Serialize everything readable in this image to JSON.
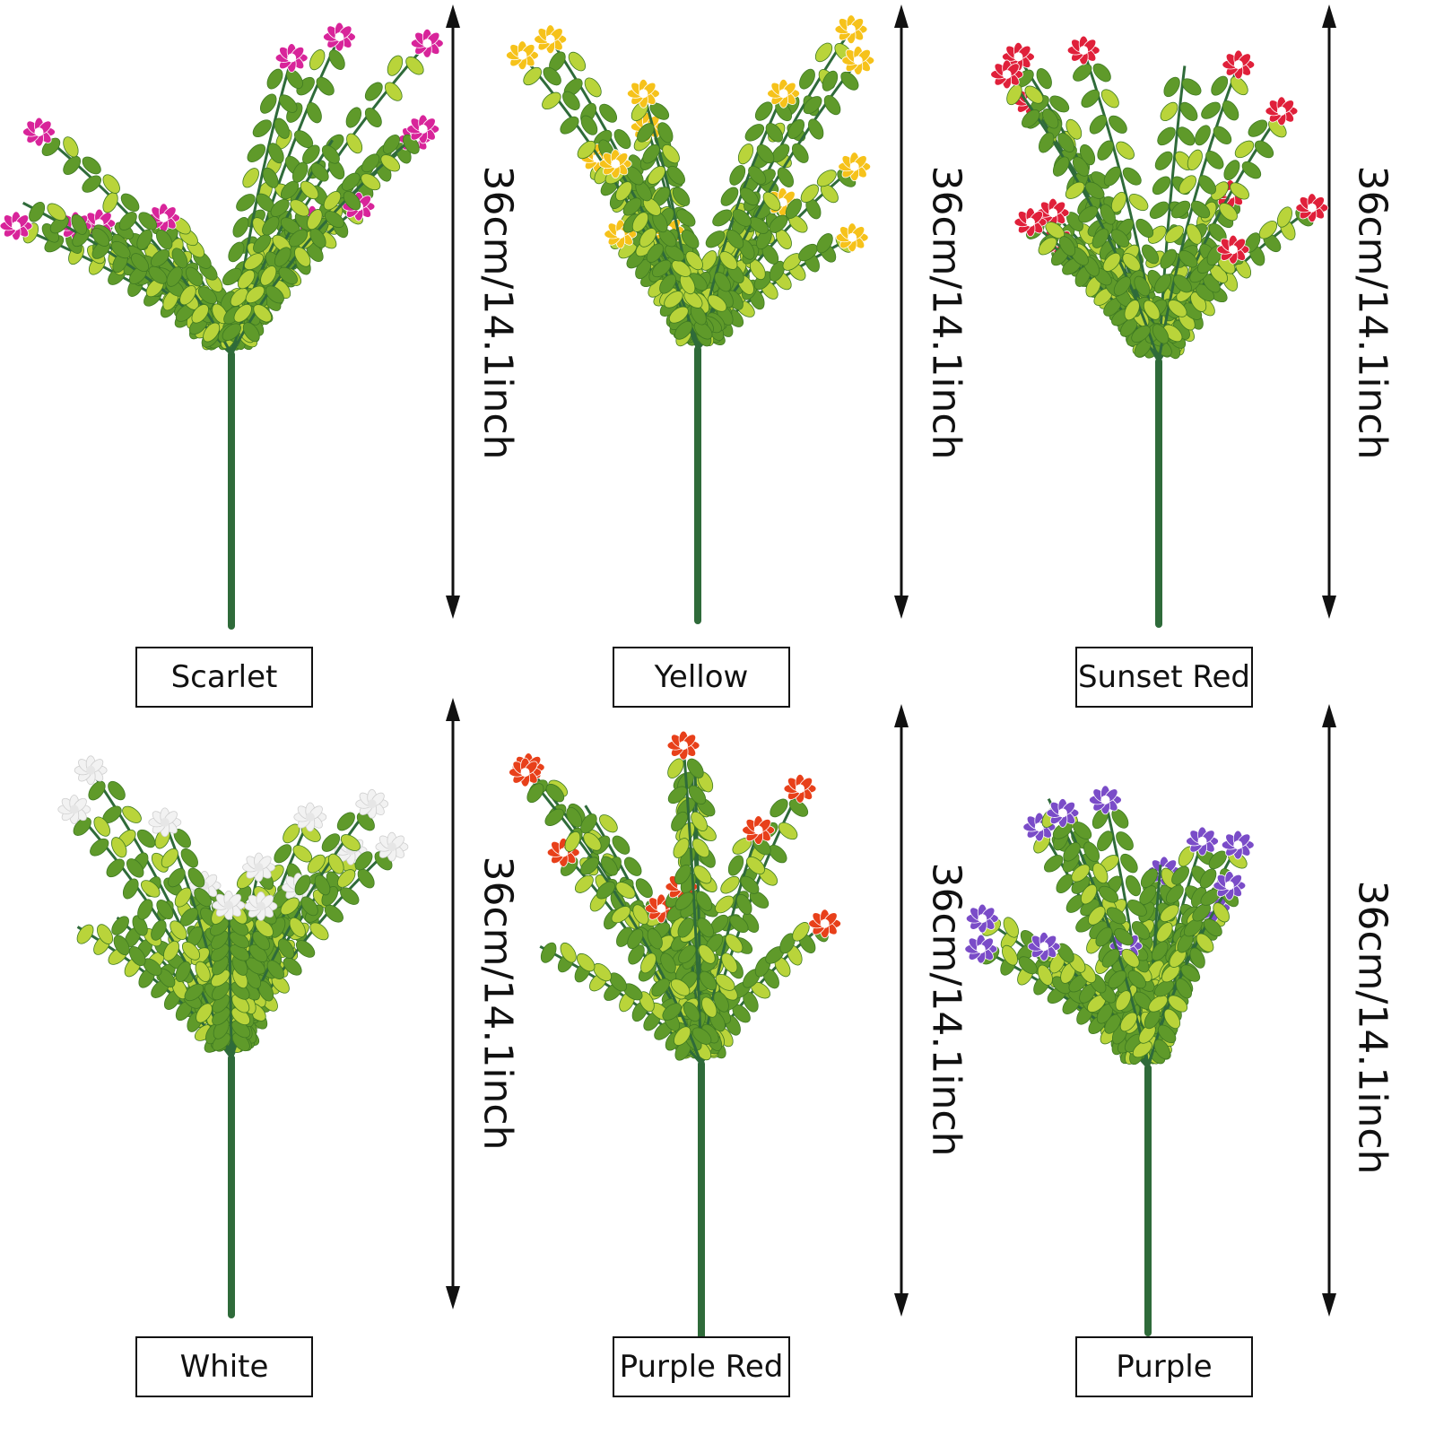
{
  "panels": [
    {
      "label": "Scarlet",
      "dimension": "36cm/14.1inch",
      "flower_color": "#d8249a"
    },
    {
      "label": "Yellow",
      "dimension": "36cm/14.1inch",
      "flower_color": "#f6c21a"
    },
    {
      "label": "Sunset Red",
      "dimension": "36cm/14.1inch",
      "flower_color": "#e0203a"
    },
    {
      "label": "White",
      "dimension": "36cm/14.1inch",
      "flower_color": "#f2f2f2"
    },
    {
      "label": "Purple Red",
      "dimension": "36cm/14.1inch",
      "flower_color": "#e8401a"
    },
    {
      "label": "Purple",
      "dimension": "36cm/14.1inch",
      "flower_color": "#7a4cc8"
    }
  ],
  "colors": {
    "leaf": "#5f9a2a",
    "leaf_light": "#b9d43a",
    "stem": "#2f6b3a",
    "arrow": "#111111"
  }
}
